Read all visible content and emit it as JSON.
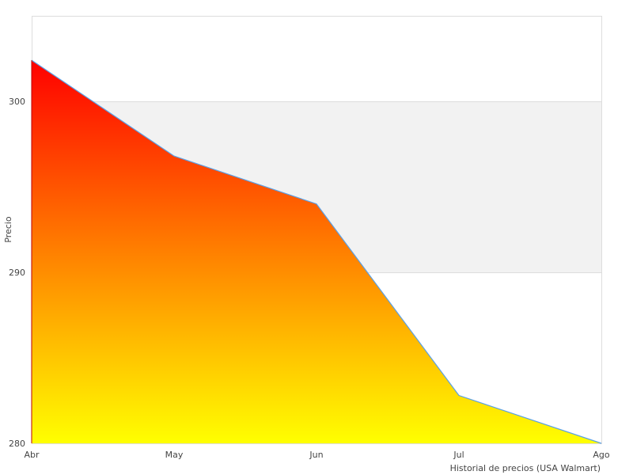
{
  "chart_data": {
    "type": "area",
    "categories": [
      "Abr",
      "May",
      "Jun",
      "Jul",
      "Ago"
    ],
    "values": [
      302.4,
      296.8,
      294.0,
      282.8,
      280.0
    ],
    "title": "",
    "xlabel": "Historial de precios (USA Walmart)",
    "ylabel": "Precio",
    "ylim": [
      280,
      305
    ],
    "yticks": [
      280,
      290,
      300
    ],
    "grid": "alternating horizontal bands",
    "legend": "none",
    "colors": {
      "line": "#5aa0e6",
      "gradient_top": "#ff0000",
      "gradient_bottom": "#ffff00",
      "band": "#f2f2f2",
      "border": "#dddddd"
    }
  }
}
